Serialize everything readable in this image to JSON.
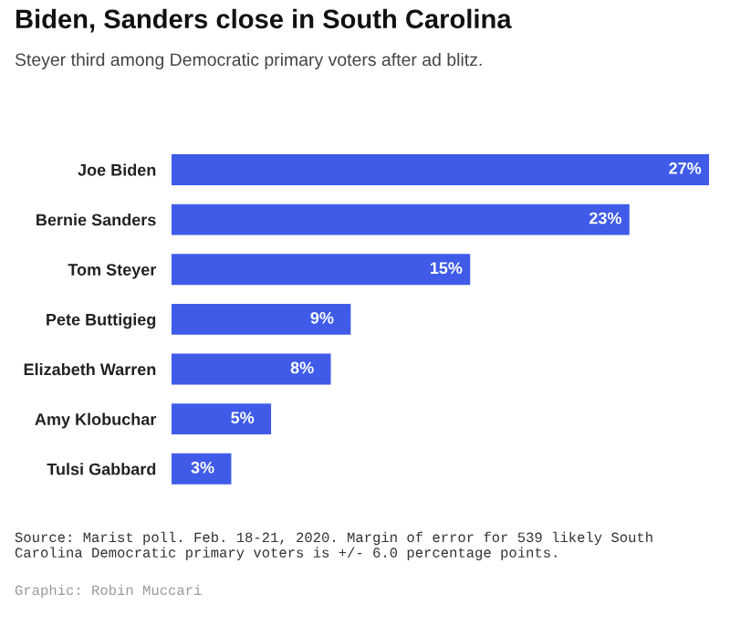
{
  "chart_data": {
    "type": "bar",
    "orientation": "horizontal",
    "title": "Biden, Sanders close in South Carolina",
    "subtitle": "Steyer third among Democratic primary voters after ad blitz.",
    "categories": [
      "Joe Biden",
      "Bernie Sanders",
      "Tom Steyer",
      "Pete Buttigieg",
      "Elizabeth Warren",
      "Amy Klobuchar",
      "Tulsi Gabbard"
    ],
    "values": [
      27,
      23,
      15,
      9,
      8,
      5,
      3
    ],
    "color": "#3f5be8",
    "data_labels": true,
    "value_labels": [
      "27%",
      "23%",
      "15%",
      "9%",
      "8%",
      "5%",
      "3%"
    ],
    "grid": false,
    "legend": false,
    "tick_labels": "y",
    "annotations": [
      "Source: Marist poll. Feb. 18-21, 2020. Margin of error for 539 likely South Carolina Democratic primary voters is +/- 6.0 percentage points.",
      "Graphic: Robin Muccari"
    ]
  }
}
